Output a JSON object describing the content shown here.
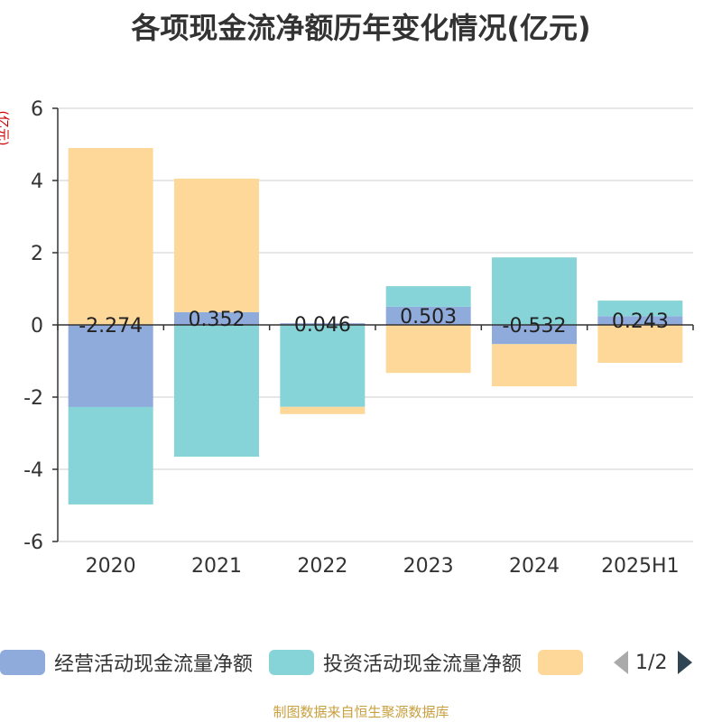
{
  "title": "各项现金流净额历年变化情况(亿元)",
  "unit": "(亿元)",
  "source": "制图数据来自恒生聚源数据库",
  "legend": {
    "items": [
      {
        "label": "经营活动现金流量净额",
        "color": "#8fabdb"
      },
      {
        "label": "投资活动现金流量净额",
        "color": "#87d4d8"
      },
      {
        "label": "",
        "color": "#fdd898"
      }
    ],
    "page": "1/2"
  },
  "chart_data": {
    "type": "bar",
    "stacked": true,
    "categories": [
      "2020",
      "2021",
      "2022",
      "2023",
      "2024",
      "2025H1"
    ],
    "ylim": [
      -6,
      6
    ],
    "yticks": [
      -6,
      -4,
      -2,
      0,
      2,
      4,
      6
    ],
    "grid": true,
    "legend_position": "bottom",
    "series": [
      {
        "name": "经营活动现金流量净额",
        "color": "#8fabdb",
        "values": [
          -2.274,
          0.352,
          0.046,
          0.503,
          -0.532,
          0.243
        ],
        "labels": [
          "-2.274",
          "0.352",
          "0.046",
          "0.503",
          "-0.532",
          "0.243"
        ]
      },
      {
        "name": "投资活动现金流量净额",
        "color": "#87d4d8",
        "values": [
          -2.7,
          -3.65,
          -2.27,
          0.57,
          1.87,
          0.43
        ]
      },
      {
        "color": "#fdd898",
        "values": [
          4.9,
          3.7,
          -0.2,
          -1.33,
          -1.17,
          -1.05
        ]
      }
    ]
  }
}
